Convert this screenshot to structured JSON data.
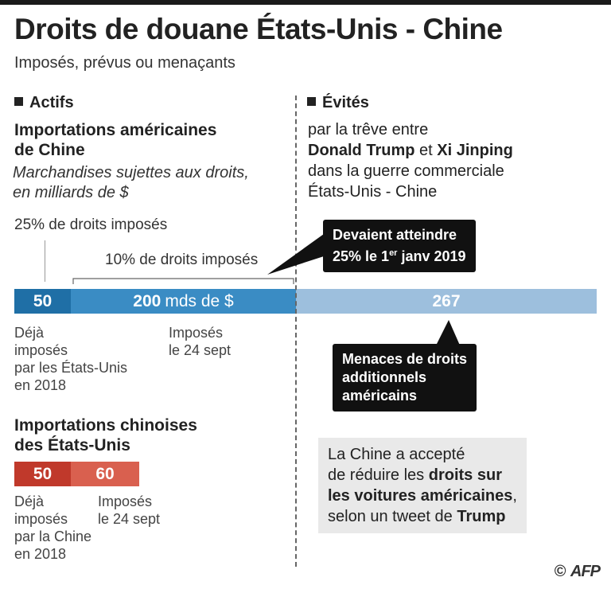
{
  "title": "Droits de douane États-Unis - Chine",
  "subtitle": "Imposés, prévus ou menaçants",
  "left": {
    "section": "Actifs",
    "us_heading": [
      "Importations américaines",
      "de Chine"
    ],
    "us_note": [
      "Marchandises sujettes aux droits,",
      "en milliards de $"
    ],
    "label_25": "25% de droits imposés",
    "label_10": "10% de droits imposés",
    "us_annot_50": [
      "Déjà",
      "imposés",
      "par les États-Unis",
      "en 2018"
    ],
    "us_annot_200": [
      "Imposés",
      "le 24 sept"
    ],
    "cn_heading": [
      "Importations chinoises",
      "des États-Unis"
    ],
    "cn_annot_50": [
      "Déjà",
      "imposés",
      "par la Chine",
      "en 2018"
    ],
    "cn_annot_60": [
      "Imposés",
      "le 24 sept"
    ]
  },
  "right": {
    "section": "Évités",
    "line1": "par la trêve entre",
    "name1": "Donald Trump",
    "and": "et",
    "name2": "Xi Jinping",
    "line3": "dans la guerre commerciale",
    "line4": "États-Unis - Chine",
    "callout_top": {
      "line1": "Devaient atteindre",
      "pre": "25%  le 1",
      "sup": "er",
      "post": " janv 2019"
    },
    "callout_threat": [
      "Menaces de droits",
      "additionnels",
      "américains"
    ],
    "box": {
      "l1": "La Chine a accepté",
      "l2a": "de réduire les ",
      "l2b": "droits sur",
      "l3a": "les voitures américaines",
      "l3b": ",",
      "l4a": "selon un tweet de ",
      "l4b": "Trump"
    }
  },
  "chart_data": [
    {
      "type": "bar",
      "stacked": true,
      "orientation": "horizontal",
      "title": "Importations américaines de Chine",
      "unit": "mds de $",
      "segments": [
        {
          "label": "50",
          "value": 50,
          "color": "#1f6fa6"
        },
        {
          "label": "200 mds de $",
          "value": 200,
          "color": "#3a8cc4"
        },
        {
          "label": "267",
          "value": 267,
          "color": "#9dbfdd"
        }
      ]
    },
    {
      "type": "bar",
      "stacked": true,
      "orientation": "horizontal",
      "title": "Importations chinoises des États-Unis",
      "segments": [
        {
          "label": "50",
          "value": 50,
          "color": "#c0392b"
        },
        {
          "label": "60",
          "value": 60,
          "color": "#d9604f"
        }
      ]
    }
  ],
  "credit": {
    "copyright": "©",
    "agency": "AFP"
  }
}
